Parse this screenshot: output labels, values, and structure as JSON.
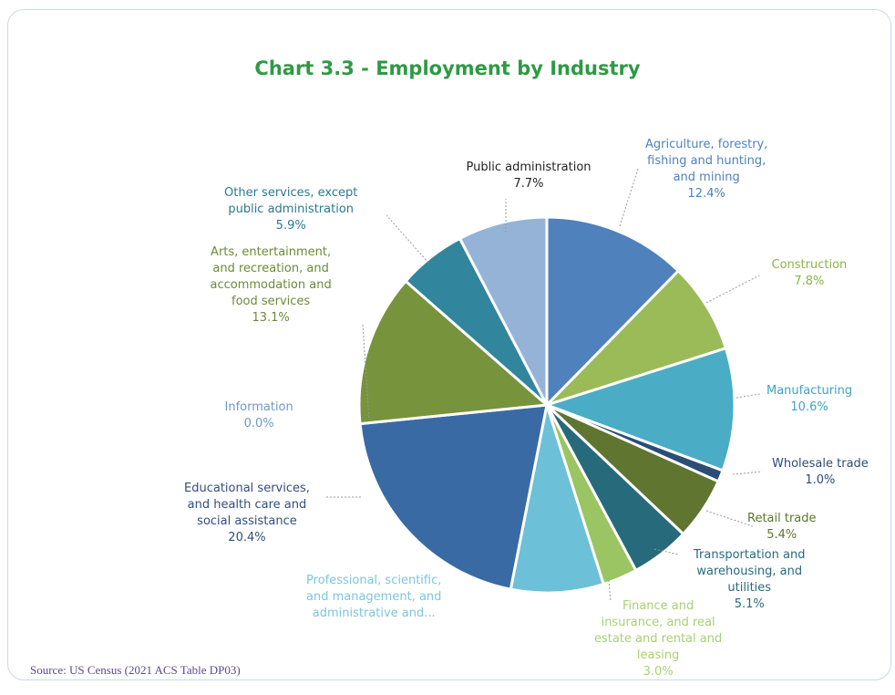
{
  "chart_data": {
    "type": "pie",
    "title": "Chart 3.3 - Employment by Industry",
    "slices": [
      {
        "label": "Agriculture, forestry, fishing and hunting, and mining",
        "display_lines": [
          "Agriculture, forestry,",
          "fishing and hunting,",
          "and mining"
        ],
        "value_label": "12.4%",
        "value": 12.4,
        "color": "#4f81bd",
        "label_color": "#4f81bd"
      },
      {
        "label": "Construction",
        "display_lines": [
          "Construction"
        ],
        "value_label": "7.8%",
        "value": 7.8,
        "color": "#9bbb59",
        "label_color": "#8db24a"
      },
      {
        "label": "Manufacturing",
        "display_lines": [
          "Manufacturing"
        ],
        "value_label": "10.6%",
        "value": 10.6,
        "color": "#4bacc6",
        "label_color": "#3ea3c0"
      },
      {
        "label": "Wholesale trade",
        "display_lines": [
          "Wholesale trade"
        ],
        "value_label": "1.0%",
        "value": 1.0,
        "color": "#2c4d75",
        "label_color": "#2c4d75"
      },
      {
        "label": "Retail trade",
        "display_lines": [
          "Retail trade"
        ],
        "value_label": "5.4%",
        "value": 5.4,
        "color": "#5f7530",
        "label_color": "#5f7530"
      },
      {
        "label": "Transportation and warehousing, and utilities",
        "display_lines": [
          "Transportation and",
          "warehousing, and",
          "utilities"
        ],
        "value_label": "5.1%",
        "value": 5.1,
        "color": "#276a7c",
        "label_color": "#276a7c"
      },
      {
        "label": "Finance and insurance, and real estate and rental and leasing",
        "display_lines": [
          "Finance and",
          "insurance, and real",
          "estate and rental and",
          "leasing"
        ],
        "value_label": "3.0%",
        "value": 3.0,
        "color": "#9bc462",
        "label_color": "#a9cf74"
      },
      {
        "label": "Professional, scientific, and management, and administrative and...",
        "display_lines": [
          "Professional, scientific,",
          "and management, and",
          "administrative and..."
        ],
        "value_label": "",
        "value": 8.0,
        "color": "#6cc0d8",
        "label_color": "#7cc6dc"
      },
      {
        "label": "Educational services, and health care and social assistance",
        "display_lines": [
          "Educational services,",
          "and health care and",
          "social assistance"
        ],
        "value_label": "20.4%",
        "value": 20.4,
        "color": "#3a6aa3",
        "label_color": "#2f4f7f"
      },
      {
        "label": "Information",
        "display_lines": [
          "Information"
        ],
        "value_label": "0.0%",
        "value": 0.0,
        "color": "#95b3d7",
        "label_color": "#6f98c8"
      },
      {
        "label": "Arts, entertainment, and recreation, and accommodation and food services",
        "display_lines": [
          "Arts, entertainment,",
          "and recreation, and",
          "accommodation and",
          "food services"
        ],
        "value_label": "13.1%",
        "value": 13.1,
        "color": "#77933c",
        "label_color": "#6e8a37"
      },
      {
        "label": "Other services, except public administration",
        "display_lines": [
          "Other services, except",
          "public administration"
        ],
        "value_label": "5.9%",
        "value": 5.9,
        "color": "#31859c",
        "label_color": "#2a7a8f"
      },
      {
        "label": "Public administration",
        "display_lines": [
          "Public administration"
        ],
        "value_label": "7.7%",
        "value": 7.7,
        "color": "#95b3d7",
        "label_color": "#222222"
      }
    ]
  },
  "source": "Source: US Census (2021 ACS Table DP03)",
  "colors": {
    "title": "#2e9a45",
    "frame_border": "#c9d9e8"
  }
}
